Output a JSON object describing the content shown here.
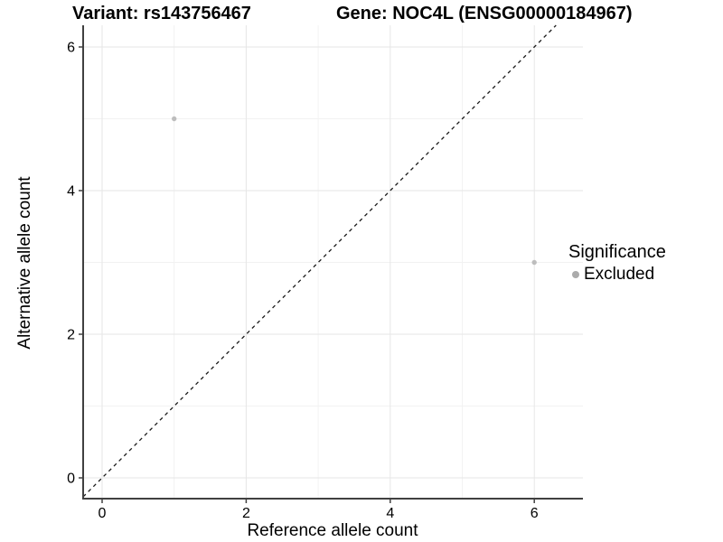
{
  "chart_data": {
    "type": "scatter",
    "titles": {
      "left": "Variant: rs143756467",
      "right": "Gene: NOC4L (ENSG00000184967)"
    },
    "xlabel": "Reference allele count",
    "ylabel": "Alternative allele count",
    "x_ticks": [
      0,
      2,
      4,
      6
    ],
    "y_ticks": [
      0,
      2,
      4,
      6
    ],
    "minor_breaks": [
      1,
      3,
      5
    ],
    "xlim": [
      -0.26,
      6.68
    ],
    "ylim": [
      -0.29,
      6.3
    ],
    "grid": "on",
    "legend_position": "right",
    "series": [
      {
        "name": "Excluded",
        "color": "#bdbdbd",
        "points": [
          {
            "x": 1,
            "y": 5
          },
          {
            "x": 6,
            "y": 3
          }
        ]
      }
    ],
    "reference_line": {
      "type": "identity y=x",
      "style": "dashed",
      "color": "#1a1a1a"
    },
    "legend": {
      "title": "Significance",
      "entries": [
        {
          "label": "Excluded",
          "color": "#ababab"
        }
      ]
    },
    "colors": {
      "axis": "#404040",
      "grid_major": "#e6e6e6",
      "grid_minor": "#f2f2f2",
      "text": "#000000",
      "background": "#ffffff"
    }
  }
}
